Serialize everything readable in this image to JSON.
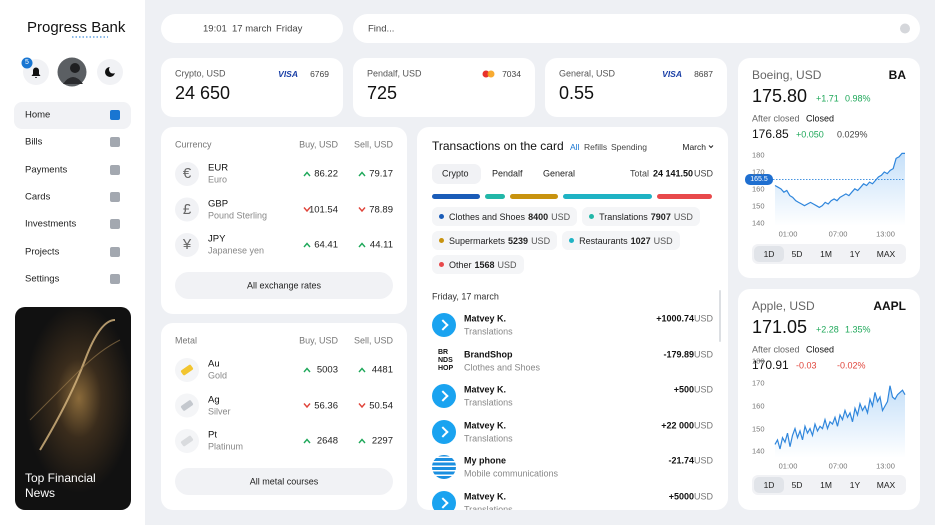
{
  "sidebar": {
    "logo": "Progress Bank",
    "notifications": 5,
    "nav": [
      "Home",
      "Bills",
      "Payments",
      "Cards",
      "Investments",
      "Projects",
      "Settings"
    ],
    "active": 0,
    "promo": "Top Financial News"
  },
  "topbar": {
    "time": "19:01",
    "date": "17 march",
    "weekday": "Friday",
    "search": "Find..."
  },
  "accounts": [
    {
      "label": "Crypto, USD",
      "card": "VISA",
      "number": "6769",
      "balance": "24 650"
    },
    {
      "label": "Pendalf, USD",
      "logo": "mastercard",
      "number": "7034",
      "balance": 725
    },
    {
      "label": "General, USD",
      "card": "VISA",
      "number": "8687",
      "balance": 0.55
    }
  ],
  "currency": {
    "headers": [
      "Currency",
      "Buy, USD",
      "Sell, USD"
    ],
    "rows": [
      {
        "symbol": "€",
        "code": "EUR",
        "name": "Euro",
        "buy": 86.22,
        "buy_trend": "up",
        "sell": 79.17,
        "sell_trend": "up"
      },
      {
        "symbol": "£",
        "code": "GBP",
        "name": "Pound Sterling",
        "buy": 101.54,
        "buy_trend": "down",
        "sell": 78.89,
        "sell_trend": "down"
      },
      {
        "symbol": "¥",
        "code": "JPY",
        "name": "Japanese yen",
        "buy": 64.41,
        "buy_trend": "up",
        "sell": 44.11,
        "sell_trend": "up"
      }
    ],
    "button": "All exchange rates"
  },
  "metal": {
    "headers": [
      "Metal",
      "Buy, USD",
      "Sell, USD"
    ],
    "rows": [
      {
        "color": "#f2c530",
        "code": "Au",
        "name": "Gold",
        "buy": 5003,
        "buy_trend": "up",
        "sell": 4481,
        "sell_trend": "up"
      },
      {
        "color": "#c4c8ce",
        "code": "Ag",
        "name": "Silver",
        "buy": 56.36,
        "buy_trend": "down",
        "sell": 50.54,
        "sell_trend": "down"
      },
      {
        "color": "#d9dbde",
        "code": "Pt",
        "name": "Platinum",
        "buy": 2648,
        "buy_trend": "up",
        "sell": 2297,
        "sell_trend": "up"
      }
    ],
    "button": "All metal courses"
  },
  "transactions": {
    "title": "Transactions on the card",
    "filters": [
      "All",
      "Refills",
      "Spending"
    ],
    "month": "March",
    "accounts": [
      "Crypto",
      "Pendalf",
      "General"
    ],
    "selected_account": 0,
    "total_label": "Total",
    "total": "24 141.50",
    "currency": "USD",
    "categories": [
      {
        "name": "Clothes and Shoes",
        "amount": 8400,
        "currency": "USD",
        "color": "#1a5cb8"
      },
      {
        "name": "Translations",
        "amount": 7907,
        "currency": "USD",
        "color": "#22b7a8"
      },
      {
        "name": "Supermarkets",
        "amount": 5239,
        "currency": "USD",
        "color": "#c8930f"
      },
      {
        "name": "Restaurants",
        "amount": 1027,
        "currency": "USD",
        "color": "#1fb3c4"
      },
      {
        "name": "Other",
        "amount": 1568,
        "currency": "USD",
        "color": "#e8494b"
      }
    ],
    "date": "Friday, 17 march",
    "items": [
      {
        "icon": "arrow",
        "name": "Matvey K.",
        "category": "Translations",
        "amount": "+1000.74",
        "currency": "USD"
      },
      {
        "icon": "brand",
        "logo": [
          "BR",
          "NDS",
          "HOP"
        ],
        "name": "BrandShop",
        "category": "Clothes and Shoes",
        "amount": -179.89,
        "currency": "USD"
      },
      {
        "icon": "arrow",
        "name": "Matvey K.",
        "category": "Translations",
        "amount": "+500",
        "currency": "USD"
      },
      {
        "icon": "arrow",
        "name": "Matvey K.",
        "category": "Translations",
        "amount": "+22 000",
        "currency": "USD"
      },
      {
        "icon": "globe",
        "name": "My phone",
        "category": "Mobile communications",
        "amount": -21.74,
        "currency": "USD"
      },
      {
        "icon": "arrow",
        "name": "Matvey K.",
        "category": "Translations",
        "amount": "+5000",
        "currency": "USD"
      }
    ]
  },
  "stocks": [
    {
      "name": "Boeing, USD",
      "ticker": "BA",
      "price": "175.80",
      "change": "+1.71",
      "change_pct": "0.98%",
      "after_label": "After closed",
      "after_status": "Closed",
      "after_price": 176.85,
      "after_change": "+0.050",
      "after_pct": "0.029%",
      "chart": {
        "ylim": [
          138,
          183
        ],
        "yticks": [
          180,
          170,
          160,
          150,
          140
        ],
        "marker": 165.5,
        "xticks": [
          "01:00",
          "07:00",
          "13:00"
        ],
        "values": [
          162,
          161,
          160,
          158,
          159,
          156,
          155,
          153,
          152,
          151,
          150,
          151,
          152,
          151,
          150,
          149,
          150,
          152,
          151,
          153,
          154,
          153,
          155,
          156,
          157,
          156,
          158,
          160,
          159,
          161,
          163,
          162,
          164,
          163,
          165,
          167,
          168,
          170,
          169,
          171,
          172,
          178,
          179,
          181,
          181
        ]
      },
      "ranges": [
        "1D",
        "5D",
        "1M",
        "1Y",
        "MAX"
      ],
      "selected_range": 0
    },
    {
      "name": "Apple, USD",
      "ticker": "AAPL",
      "price": 171.05,
      "change": "+2.28",
      "change_pct": "1.35%",
      "after_label": "After closed",
      "after_status": "Closed",
      "after_price": 170.91,
      "after_change": -0.03,
      "after_pct": "-0.02%",
      "chart": {
        "ylim": [
          137,
          183
        ],
        "yticks": [
          180,
          170,
          160,
          150,
          140
        ],
        "xticks": [
          "01:00",
          "07:00",
          "13:00"
        ],
        "values": [
          143,
          145,
          141,
          146,
          144,
          148,
          142,
          147,
          150,
          146,
          149,
          145,
          151,
          148,
          150,
          147,
          152,
          149,
          151,
          150,
          154,
          150,
          153,
          152,
          155,
          151,
          156,
          154,
          158,
          155,
          157,
          153,
          159,
          156,
          161,
          158,
          160,
          157,
          163,
          160,
          166,
          162,
          164,
          158,
          160,
          162,
          169,
          164,
          163,
          165,
          166,
          167,
          165
        ]
      },
      "ranges": [
        "1D",
        "5D",
        "1M",
        "1Y",
        "MAX"
      ],
      "selected_range": 0
    }
  ]
}
